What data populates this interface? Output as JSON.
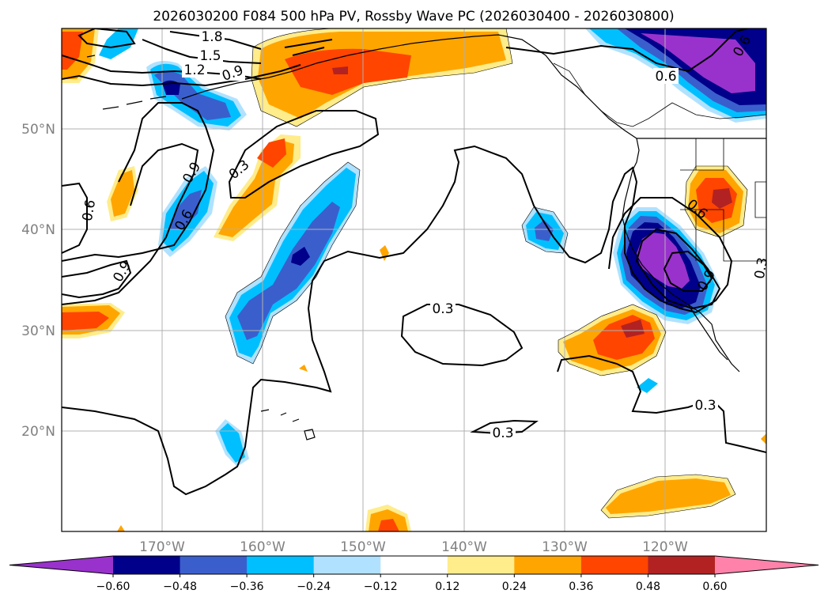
{
  "title": "2026030200 F084 500 hPa PV, Rossby Wave PC (2026030400 - 2026030800)",
  "lat_labels": [
    "50°N",
    "40°N",
    "30°N",
    "20°N"
  ],
  "lon_labels": [
    "170°W",
    "160°W",
    "150°W",
    "140°W",
    "130°W",
    "120°W"
  ],
  "contour_labels": [
    "1.8",
    "1.5",
    "1.2",
    "0.9",
    "0.6",
    "0.9",
    "0.3",
    "0.6",
    "0.6",
    "0.9",
    "0.3",
    "0.3",
    "0.3",
    "0.6",
    "0.9",
    "0.3",
    "0.6"
  ],
  "colorbar": {
    "ticks": [
      "−0.60",
      "−0.48",
      "−0.36",
      "−0.24",
      "−0.12",
      "0.12",
      "0.24",
      "0.36",
      "0.48",
      "0.60"
    ],
    "colors": [
      "#9932cc",
      "#00008b",
      "#3a5fcd",
      "#00bfff",
      "#b0e2ff",
      "#ffffff",
      "#ffec8b",
      "#ffa500",
      "#ff4500",
      "#b22222",
      "#ff82ab"
    ]
  }
}
